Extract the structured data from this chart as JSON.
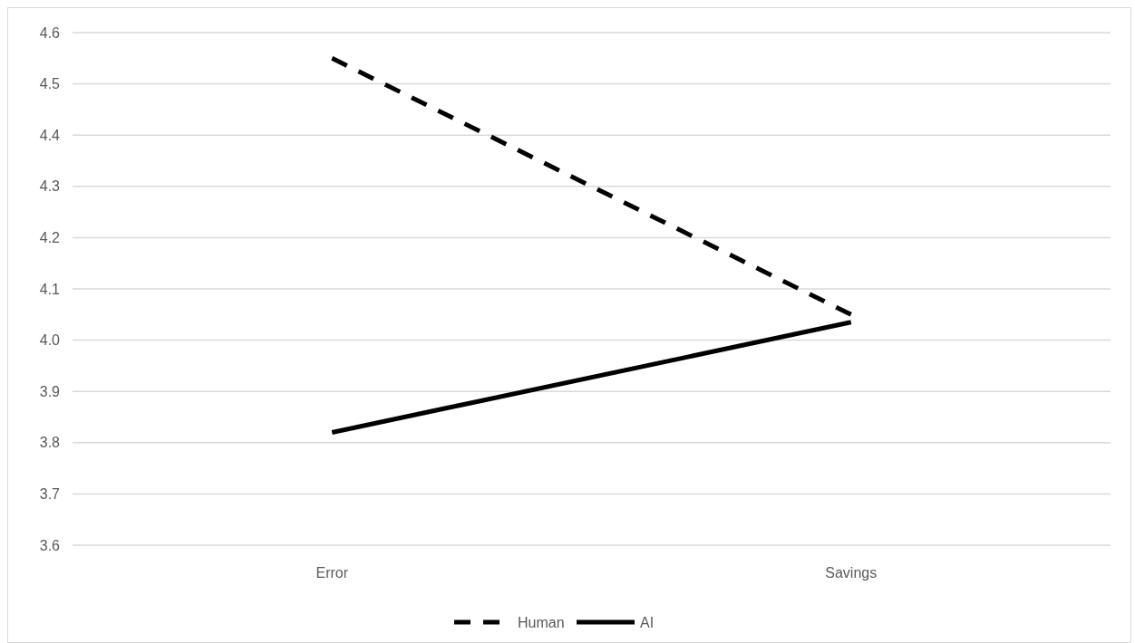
{
  "chart_data": {
    "type": "line",
    "categories": [
      "Error",
      "Savings"
    ],
    "series": [
      {
        "name": "Human",
        "color": "#000000",
        "values": [
          4.55,
          4.05
        ],
        "line_style": "dashed"
      },
      {
        "name": "AI",
        "color": "#000000",
        "values": [
          3.82,
          4.035
        ],
        "line_style": "solid"
      }
    ],
    "ylim": [
      3.6,
      4.6
    ],
    "yticks": [
      {
        "value": 3.6,
        "label": "3.6"
      },
      {
        "value": 3.7,
        "label": "3.7"
      },
      {
        "value": 3.8,
        "label": "3.8"
      },
      {
        "value": 3.9,
        "label": "3.9"
      },
      {
        "value": 4.0,
        "label": "4.0"
      },
      {
        "value": 4.1,
        "label": "4.1"
      },
      {
        "value": 4.2,
        "label": "4.2"
      },
      {
        "value": 4.3,
        "label": "4.3"
      },
      {
        "value": 4.4,
        "label": "4.4"
      },
      {
        "value": 4.5,
        "label": "4.5"
      },
      {
        "value": 4.6,
        "label": "4.6"
      }
    ],
    "grid": "y",
    "legend": "bottom",
    "marker": "none"
  }
}
